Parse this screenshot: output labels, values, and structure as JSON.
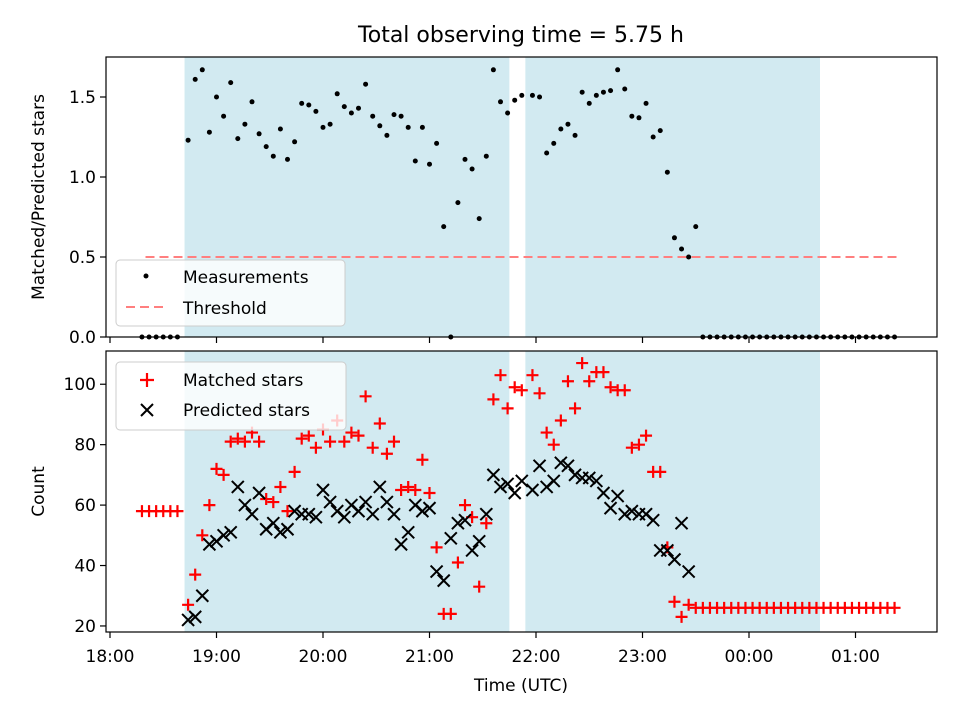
{
  "chart_data": {
    "type": "scatter",
    "title": "Total observing time = 5.75 h",
    "xlabel": "Time (UTC)",
    "x_ticks": [
      "18:00",
      "19:00",
      "20:00",
      "21:00",
      "22:00",
      "23:00",
      "00:00",
      "01:00"
    ],
    "shaded_spans": [
      [
        "18:42",
        "21:45"
      ],
      [
        "21:54",
        "00:40"
      ]
    ],
    "colors": {
      "shade": "#add8e6",
      "matched": "#ff0000",
      "predicted": "#000000",
      "threshold": "#ff7f7f",
      "measurements": "#000000"
    },
    "panels": [
      {
        "ylabel": "Matched/Predicted stars",
        "ylim": [
          0,
          1.75
        ],
        "yticks": [
          "0.0",
          "0.5",
          "1.0",
          "1.5"
        ],
        "legend": {
          "location": "lower-left",
          "entries": [
            "Measurements",
            "Threshold"
          ]
        },
        "threshold": {
          "name": "Threshold",
          "value": 0.5,
          "x_range": [
            "18:20",
            "01:25"
          ]
        },
        "series": [
          {
            "name": "Measurements",
            "x": [
              "18:18",
              "18:22",
              "18:26",
              "18:30",
              "18:34",
              "18:38",
              "18:44",
              "18:48",
              "18:52",
              "18:56",
              "19:00",
              "19:04",
              "19:08",
              "19:12",
              "19:16",
              "19:20",
              "19:24",
              "19:28",
              "19:32",
              "19:36",
              "19:40",
              "19:44",
              "19:48",
              "19:52",
              "19:56",
              "20:00",
              "20:04",
              "20:08",
              "20:12",
              "20:16",
              "20:20",
              "20:24",
              "20:28",
              "20:32",
              "20:36",
              "20:40",
              "20:44",
              "20:48",
              "20:52",
              "20:56",
              "21:00",
              "21:04",
              "21:08",
              "21:12",
              "21:16",
              "21:20",
              "21:24",
              "21:28",
              "21:32",
              "21:36",
              "21:40",
              "21:44",
              "21:48",
              "21:52",
              "21:58",
              "22:02",
              "22:06",
              "22:10",
              "22:14",
              "22:18",
              "22:22",
              "22:26",
              "22:30",
              "22:34",
              "22:38",
              "22:42",
              "22:46",
              "22:50",
              "22:54",
              "22:58",
              "23:02",
              "23:06",
              "23:10",
              "23:14",
              "23:18",
              "23:22",
              "23:26",
              "23:30",
              "23:34",
              "23:38",
              "23:42",
              "23:46",
              "23:50",
              "23:54",
              "23:58",
              "00:02",
              "00:06",
              "00:10",
              "00:14",
              "00:18",
              "00:22",
              "00:26",
              "00:30",
              "00:34",
              "00:38",
              "00:42",
              "00:46",
              "00:50",
              "00:54",
              "00:58",
              "01:02",
              "01:06",
              "01:10",
              "01:14",
              "01:18",
              "01:22"
            ],
            "y": [
              0,
              0,
              0,
              0,
              0,
              0,
              1.23,
              1.61,
              1.67,
              1.28,
              1.5,
              1.38,
              1.59,
              1.24,
              1.33,
              1.47,
              1.27,
              1.19,
              1.13,
              1.3,
              1.11,
              1.22,
              1.46,
              1.45,
              1.41,
              1.31,
              1.33,
              1.52,
              1.44,
              1.4,
              1.43,
              1.58,
              1.38,
              1.32,
              1.26,
              1.39,
              1.38,
              1.31,
              1.1,
              1.31,
              1.08,
              1.21,
              0.69,
              0,
              0.84,
              1.11,
              1.05,
              0.74,
              1.13,
              1.67,
              1.47,
              1.4,
              1.48,
              1.51,
              1.51,
              1.5,
              1.15,
              1.21,
              1.3,
              1.33,
              1.26,
              1.53,
              1.46,
              1.51,
              1.53,
              1.54,
              1.67,
              1.55,
              1.38,
              1.37,
              1.46,
              1.25,
              1.29,
              1.03,
              0.62,
              0.55,
              0.5,
              0.69,
              0,
              0,
              0,
              0,
              0,
              0,
              0,
              0,
              0,
              0,
              0,
              0,
              0,
              0,
              0,
              0,
              0,
              0,
              0,
              0,
              0,
              0,
              0,
              0,
              0,
              0,
              0,
              0
            ]
          }
        ]
      },
      {
        "ylabel": "Count",
        "ylim": [
          18,
          111
        ],
        "yticks": [
          "20",
          "40",
          "60",
          "80",
          "100"
        ],
        "legend": {
          "location": "upper-left",
          "entries": [
            "Matched stars",
            "Predicted stars"
          ]
        },
        "series": [
          {
            "name": "Matched stars",
            "marker": "plus",
            "x": [
              "18:18",
              "18:22",
              "18:26",
              "18:30",
              "18:34",
              "18:38",
              "18:44",
              "18:48",
              "18:52",
              "18:56",
              "19:00",
              "19:04",
              "19:08",
              "19:12",
              "19:16",
              "19:20",
              "19:24",
              "19:28",
              "19:32",
              "19:36",
              "19:40",
              "19:44",
              "19:48",
              "19:52",
              "19:56",
              "20:00",
              "20:04",
              "20:08",
              "20:12",
              "20:16",
              "20:20",
              "20:24",
              "20:28",
              "20:32",
              "20:36",
              "20:40",
              "20:44",
              "20:48",
              "20:52",
              "20:56",
              "21:00",
              "21:04",
              "21:08",
              "21:12",
              "21:16",
              "21:20",
              "21:24",
              "21:28",
              "21:32",
              "21:36",
              "21:40",
              "21:44",
              "21:48",
              "21:52",
              "21:58",
              "22:02",
              "22:06",
              "22:10",
              "22:14",
              "22:18",
              "22:22",
              "22:26",
              "22:30",
              "22:34",
              "22:38",
              "22:42",
              "22:46",
              "22:50",
              "22:54",
              "22:58",
              "23:02",
              "23:06",
              "23:10",
              "23:14",
              "23:18",
              "23:22",
              "23:26",
              "23:30",
              "23:34",
              "23:38",
              "23:42",
              "23:46",
              "23:50",
              "23:54",
              "23:58",
              "00:02",
              "00:06",
              "00:10",
              "00:14",
              "00:18",
              "00:22",
              "00:26",
              "00:30",
              "00:34",
              "00:38",
              "00:42",
              "00:46",
              "00:50",
              "00:54",
              "00:58",
              "01:02",
              "01:06",
              "01:10",
              "01:14",
              "01:18",
              "01:22"
            ],
            "y": [
              58,
              58,
              58,
              58,
              58,
              58,
              27,
              37,
              50,
              60,
              72,
              70,
              81,
              82,
              81,
              84,
              81,
              62,
              61,
              66,
              58,
              71,
              82,
              83,
              79,
              85,
              81,
              88,
              81,
              84,
              83,
              96,
              79,
              87,
              77,
              81,
              65,
              66,
              65,
              75,
              64,
              46,
              24,
              24,
              41,
              60,
              56,
              33,
              54,
              95,
              103,
              92,
              99,
              98,
              103,
              97,
              84,
              80,
              88,
              101,
              92,
              107,
              101,
              104,
              104,
              99,
              98,
              98,
              79,
              80,
              83,
              71,
              71,
              46,
              28,
              23,
              27,
              26,
              26,
              26,
              26,
              26,
              26,
              26,
              26,
              26,
              26,
              26,
              26,
              26,
              26,
              26,
              26,
              26,
              26,
              26,
              26,
              26,
              26,
              26,
              26,
              26,
              26,
              26,
              26,
              26
            ]
          },
          {
            "name": "Predicted stars",
            "marker": "x",
            "x": [
              "18:44",
              "18:48",
              "18:52",
              "18:56",
              "19:00",
              "19:04",
              "19:08",
              "19:12",
              "19:16",
              "19:20",
              "19:24",
              "19:28",
              "19:32",
              "19:36",
              "19:40",
              "19:44",
              "19:48",
              "19:52",
              "19:56",
              "20:00",
              "20:04",
              "20:08",
              "20:12",
              "20:16",
              "20:20",
              "20:24",
              "20:28",
              "20:32",
              "20:36",
              "20:40",
              "20:44",
              "20:48",
              "20:52",
              "20:56",
              "21:00",
              "21:04",
              "21:08",
              "21:12",
              "21:16",
              "21:20",
              "21:24",
              "21:28",
              "21:32",
              "21:36",
              "21:40",
              "21:44",
              "21:48",
              "21:52",
              "21:58",
              "22:02",
              "22:06",
              "22:10",
              "22:14",
              "22:18",
              "22:22",
              "22:26",
              "22:30",
              "22:34",
              "22:38",
              "22:42",
              "22:46",
              "22:50",
              "22:54",
              "22:58",
              "23:02",
              "23:06",
              "23:10",
              "23:14",
              "23:18",
              "23:22",
              "23:26",
              "23:30",
              "23:34",
              "23:38",
              "23:42",
              "23:46",
              "23:50",
              "23:54",
              "23:58",
              "00:02",
              "00:06",
              "00:10",
              "00:14",
              "00:18",
              "00:22",
              "00:26",
              "00:30",
              "00:34",
              "00:38"
            ],
            "y": [
              22,
              23,
              30,
              47,
              48,
              50,
              51,
              66,
              60,
              57,
              64,
              52,
              54,
              51,
              52,
              58,
              57,
              57,
              56,
              65,
              61,
              58,
              56,
              60,
              58,
              61,
              57,
              66,
              61,
              57,
              47,
              51,
              60,
              58,
              59,
              38,
              35,
              49,
              54,
              55,
              45,
              48,
              57,
              70,
              66,
              67,
              64,
              68,
              65,
              73,
              66,
              68,
              74,
              73,
              70,
              69,
              69,
              68,
              64,
              59,
              63,
              57,
              58,
              57,
              57,
              55,
              45,
              45,
              42,
              54,
              38,
              null,
              null,
              null,
              null,
              null,
              null,
              null,
              null,
              null,
              null,
              null,
              null,
              null,
              null,
              null,
              null,
              null,
              null
            ]
          }
        ]
      }
    ]
  }
}
